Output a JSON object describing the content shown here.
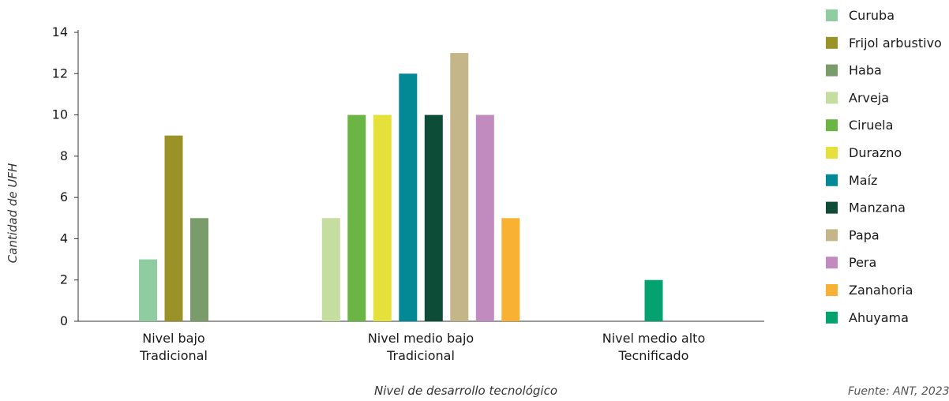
{
  "chart_data": {
    "type": "bar",
    "xlabel": "Nivel de desarrollo tecnológico",
    "ylabel": "Cantidad de UFH",
    "ylim": [
      0,
      14
    ],
    "yticks": [
      0,
      2,
      4,
      6,
      8,
      10,
      12,
      14
    ],
    "grid": false,
    "legend_position": "right",
    "source": "Fuente: ANT, 2023.",
    "groups": [
      {
        "label_lines": [
          "Nivel bajo",
          "Tradicional"
        ],
        "bars": [
          {
            "series": "Curuba",
            "value": 3
          },
          {
            "series": "Frijol arbustivo",
            "value": 9
          },
          {
            "series": "Haba",
            "value": 5
          }
        ]
      },
      {
        "label_lines": [
          "Nivel medio bajo",
          "Tradicional"
        ],
        "bars": [
          {
            "series": "Arveja",
            "value": 5
          },
          {
            "series": "Ciruela",
            "value": 10
          },
          {
            "series": "Durazno",
            "value": 10
          },
          {
            "series": "Maíz",
            "value": 12
          },
          {
            "series": "Manzana",
            "value": 10
          },
          {
            "series": "Papa",
            "value": 13
          },
          {
            "series": "Pera",
            "value": 10
          },
          {
            "series": "Zanahoria",
            "value": 5
          }
        ]
      },
      {
        "label_lines": [
          "Nivel medio alto",
          "Tecnificado"
        ],
        "bars": [
          {
            "series": "Ahuyama",
            "value": 2
          }
        ]
      }
    ],
    "series": [
      {
        "name": "Curuba",
        "color": "#8fcca0"
      },
      {
        "name": "Frijol arbustivo",
        "color": "#9a9226"
      },
      {
        "name": "Haba",
        "color": "#7a9c6a"
      },
      {
        "name": "Arveja",
        "color": "#c5dd9e"
      },
      {
        "name": "Ciruela",
        "color": "#6bb544"
      },
      {
        "name": "Durazno",
        "color": "#e6e03a"
      },
      {
        "name": "Maíz",
        "color": "#038896"
      },
      {
        "name": "Manzana",
        "color": "#0d4d38"
      },
      {
        "name": "Papa",
        "color": "#c5b689"
      },
      {
        "name": "Pera",
        "color": "#c28bbf"
      },
      {
        "name": "Zanahoria",
        "color": "#f8b133"
      },
      {
        "name": "Ahuyama",
        "color": "#04a26f"
      }
    ]
  }
}
